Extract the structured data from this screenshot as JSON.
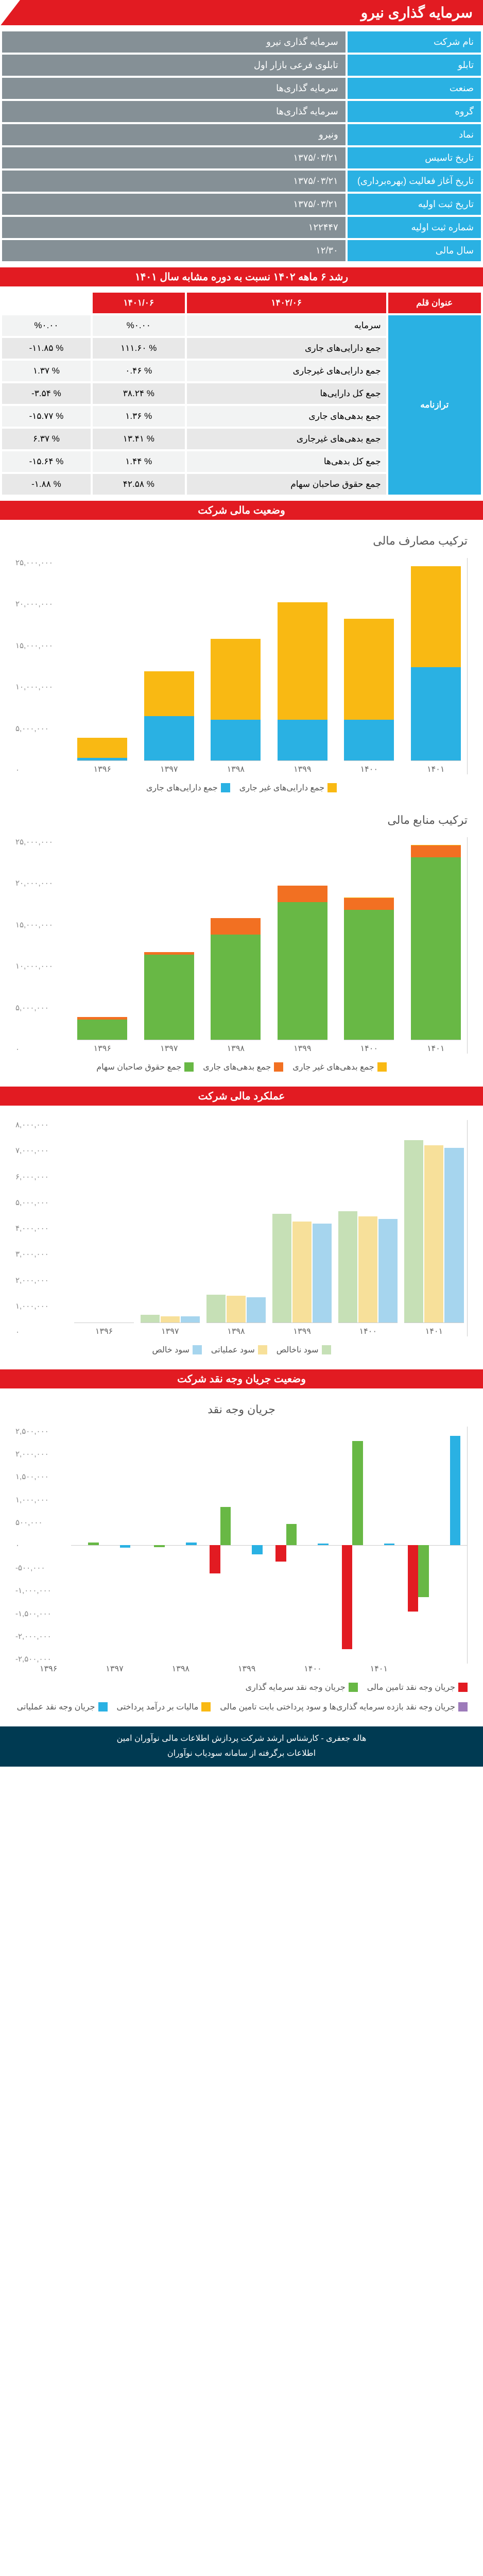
{
  "header": {
    "title": "سرمایه گذاری نیرو"
  },
  "info_rows": [
    {
      "label": "نام شرکت",
      "value": "سرمایه گذاری نیرو"
    },
    {
      "label": "تابلو",
      "value": "تابلوی فرعی بازار اول"
    },
    {
      "label": "صنعت",
      "value": "سرمایه گذاری‌ها"
    },
    {
      "label": "گروه",
      "value": "سرمایه گذاری‌ها"
    },
    {
      "label": "نماد",
      "value": "ونیرو"
    },
    {
      "label": "تاریخ تاسیس",
      "value": "۱۳۷۵/۰۳/۲۱"
    },
    {
      "label": "تاریخ آغاز فعالیت (بهره‌برداری)",
      "value": "۱۳۷۵/۰۳/۲۱"
    },
    {
      "label": "تاریخ ثبت اولیه",
      "value": "۱۳۷۵/۰۳/۲۱"
    },
    {
      "label": "شماره ثبت اولیه",
      "value": "۱۲۲۴۴۷"
    },
    {
      "label": "سال مالی",
      "value": "۱۲/۳۰"
    }
  ],
  "growth": {
    "title": "رشد ۶ ماهه ۱۴۰۲ نسبت به دوره مشابه سال ۱۴۰۱",
    "side_label": "ترازنامه",
    "headers": [
      "عنوان قلم",
      "۱۴۰۲/۰۶",
      "۱۴۰۱/۰۶"
    ],
    "rows": [
      [
        "سرمایه",
        "%۰.۰۰",
        "%۰.۰۰"
      ],
      [
        "جمع دارایی‌های جاری",
        "% ۱۱۱.۶۰",
        "% ‎-۱۱.۸۵"
      ],
      [
        "جمع دارایی‌های غیرجاری",
        "% ۰.۴۶",
        "% ۱.۳۷"
      ],
      [
        "جمع کل دارایی‌ها",
        "% ۳۸.۲۴",
        "% ‎-۳.۵۴"
      ],
      [
        "جمع بدهی‌های جاری",
        "% ۱.۳۶",
        "% ‎-۱۵.۷۷"
      ],
      [
        "جمع بدهی‌های غیرجاری",
        "% ۱۳.۴۱",
        "% ۶.۳۷"
      ],
      [
        "جمع کل بدهی‌ها",
        "% ۱.۴۴",
        "% ‎-۱۵.۶۴"
      ],
      [
        "جمع حقوق صاحبان سهام",
        "% ۴۲.۵۸",
        "% ‎-۱.۸۸"
      ]
    ]
  },
  "section_titles": {
    "financial_status": "وضعیت مالی شرکت",
    "performance": "عملکرد مالی شرکت",
    "cashflow": "وضعیت جریان وجه نقد شرکت"
  },
  "chart1": {
    "title": "ترکیب مصارف مالی",
    "y_ticks": [
      "۲۵,۰۰۰,۰۰۰",
      "۲۰,۰۰۰,۰۰۰",
      "۱۵,۰۰۰,۰۰۰",
      "۱۰,۰۰۰,۰۰۰",
      "۵,۰۰۰,۰۰۰",
      "۰"
    ],
    "y_max": 25000000,
    "categories": [
      "۱۳۹۶",
      "۱۳۹۷",
      "۱۳۹۸",
      "۱۳۹۹",
      "۱۴۰۰",
      "۱۴۰۱"
    ],
    "series": [
      {
        "name": "جمع دارایی‌های غیر جاری",
        "color": "#f9b913"
      },
      {
        "name": "جمع دارایی‌های جاری",
        "color": "#2ab1e3"
      }
    ],
    "values": [
      [
        2500000,
        300000
      ],
      [
        5500000,
        5500000
      ],
      [
        10000000,
        5000000
      ],
      [
        14500000,
        5000000
      ],
      [
        12500000,
        5000000
      ],
      [
        12500000,
        11500000
      ]
    ]
  },
  "chart2": {
    "title": "ترکیب منابع مالی",
    "y_ticks": [
      "۲۵,۰۰۰,۰۰۰",
      "۲۰,۰۰۰,۰۰۰",
      "۱۵,۰۰۰,۰۰۰",
      "۱۰,۰۰۰,۰۰۰",
      "۵,۰۰۰,۰۰۰",
      "۰"
    ],
    "y_max": 25000000,
    "categories": [
      "۱۳۹۶",
      "۱۳۹۷",
      "۱۳۹۸",
      "۱۳۹۹",
      "۱۴۰۰",
      "۱۴۰۱"
    ],
    "series": [
      {
        "name": "جمع بدهی‌های غیر جاری",
        "color": "#f9b913"
      },
      {
        "name": "جمع بدهی‌های جاری",
        "color": "#f27022"
      },
      {
        "name": "جمع حقوق صاحبان سهام",
        "color": "#68b845"
      }
    ],
    "values": [
      [
        30000,
        300000,
        2500000
      ],
      [
        30000,
        300000,
        10500000
      ],
      [
        30000,
        2000000,
        13000000
      ],
      [
        30000,
        2000000,
        17000000
      ],
      [
        30000,
        1500000,
        16000000
      ],
      [
        30000,
        1500000,
        22500000
      ]
    ]
  },
  "chart3": {
    "y_ticks": [
      "۸,۰۰۰,۰۰۰",
      "۷,۰۰۰,۰۰۰",
      "۶,۰۰۰,۰۰۰",
      "۵,۰۰۰,۰۰۰",
      "۴,۰۰۰,۰۰۰",
      "۳,۰۰۰,۰۰۰",
      "۲,۰۰۰,۰۰۰",
      "۱,۰۰۰,۰۰۰",
      "۰"
    ],
    "y_max": 8000000,
    "categories": [
      "۱۳۹۶",
      "۱۳۹۷",
      "۱۳۹۸",
      "۱۳۹۹",
      "۱۴۰۰",
      "۱۴۰۱"
    ],
    "series": [
      {
        "name": "سود ناخالص",
        "color": "#c6e0b6"
      },
      {
        "name": "سود عملیاتی",
        "color": "#f7e09a"
      },
      {
        "name": "سود خالص",
        "color": "#a6d5ee"
      }
    ],
    "values": [
      [
        0,
        0,
        0
      ],
      [
        300000,
        250000,
        250000
      ],
      [
        1100000,
        1050000,
        1000000
      ],
      [
        4300000,
        4000000,
        3900000
      ],
      [
        4400000,
        4200000,
        4100000
      ],
      [
        7200000,
        7000000,
        6900000
      ]
    ]
  },
  "chart4": {
    "title": "جریان وجه نقد",
    "y_ticks": [
      "۲,۵۰۰,۰۰۰",
      "۲,۰۰۰,۰۰۰",
      "۱,۵۰۰,۰۰۰",
      "۱,۰۰۰,۰۰۰",
      "۵۰۰,۰۰۰",
      "۰",
      "-۵۰۰,۰۰۰",
      "-۱,۰۰۰,۰۰۰",
      "-۱,۵۰۰,۰۰۰",
      "-۲,۰۰۰,۰۰۰",
      "-۲,۵۰۰,۰۰۰"
    ],
    "y_min": -2500000,
    "y_max": 2500000,
    "categories": [
      "۱۳۹۶",
      "۱۳۹۷",
      "۱۳۹۸",
      "۱۳۹۹",
      "۱۴۰۰",
      "۱۴۰۱"
    ],
    "series": [
      {
        "name": "جریان وجه نقد تامین مالی",
        "color": "#e21b22"
      },
      {
        "name": "جریان وجه نقد سرمایه گذاری",
        "color": "#68b845"
      },
      {
        "name": "جریان وجه نقد بازده سرمایه گذاری‌ها و سود پرداختی بابت تامین مالی",
        "color": "#9d7bba"
      },
      {
        "name": "مالیات بر درآمد پرداختی",
        "color": "#f9b913"
      },
      {
        "name": "جریان وجه نقد عملیاتی",
        "color": "#2ab1e3"
      }
    ],
    "values": [
      [
        0,
        50000,
        0,
        0,
        -50000
      ],
      [
        0,
        -40000,
        0,
        0,
        50000
      ],
      [
        -600000,
        800000,
        0,
        0,
        -200000
      ],
      [
        -350000,
        450000,
        0,
        0,
        30000
      ],
      [
        -2200000,
        2200000,
        0,
        0,
        30000
      ],
      [
        -1400000,
        -1100000,
        0,
        0,
        2300000
      ]
    ]
  },
  "footer": {
    "line1": "هاله جعفری - کارشناس ارشد شرکت پردازش اطلاعات مالی نوآوران امین",
    "line2": "اطلاعات برگرفته از سامانه سودیاب نوآوران"
  },
  "colors": {
    "red": "#e21b22",
    "blue": "#2ab1e3",
    "gray": "#859096",
    "green": "#68b845",
    "orange": "#f27022",
    "yellow": "#f9b913",
    "purple": "#9d7bba",
    "lt_green": "#c6e0b6",
    "lt_yellow": "#f7e09a",
    "lt_blue": "#a6d5ee",
    "dk_blue": "#003a52"
  }
}
